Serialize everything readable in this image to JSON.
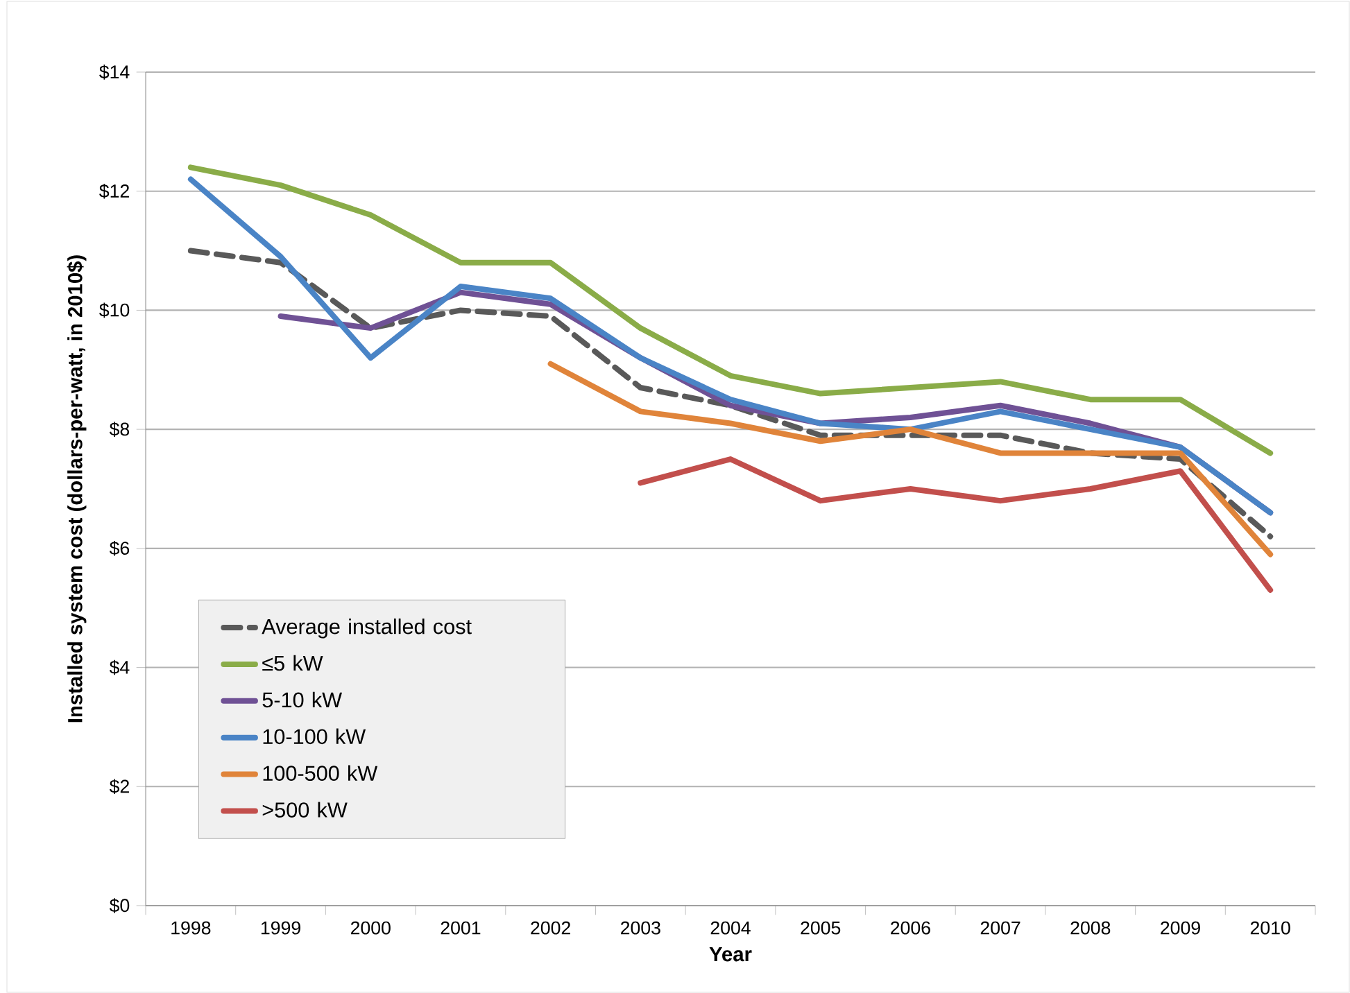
{
  "chart_data": {
    "type": "line",
    "xlabel": "Year",
    "ylabel": "Installed system cost (dollars-per-watt, in 2010$)",
    "categories": [
      "1998",
      "1999",
      "2000",
      "2001",
      "2002",
      "2003",
      "2004",
      "2005",
      "2006",
      "2007",
      "2008",
      "2009",
      "2010"
    ],
    "series": [
      {
        "name": "Average installed cost",
        "color": "#595959",
        "line_style": "dashed",
        "values": [
          11.0,
          10.8,
          9.7,
          10.0,
          9.9,
          8.7,
          8.4,
          7.9,
          7.9,
          7.9,
          7.6,
          7.5,
          6.2
        ]
      },
      {
        "name": "≤5 kW",
        "color": "#8aac48",
        "values": [
          12.4,
          12.1,
          11.6,
          10.8,
          10.8,
          9.7,
          8.9,
          8.6,
          8.7,
          8.8,
          8.5,
          8.5,
          7.6
        ]
      },
      {
        "name": "5-10 kW",
        "color": "#6f5195",
        "values": [
          null,
          9.9,
          9.7,
          10.3,
          10.1,
          9.2,
          8.4,
          8.1,
          8.2,
          8.4,
          8.1,
          7.7,
          6.6
        ]
      },
      {
        "name": "10-100 kW",
        "color": "#4a84c6",
        "values": [
          12.2,
          10.9,
          9.2,
          10.4,
          10.2,
          9.2,
          8.5,
          8.1,
          8.0,
          8.3,
          8.0,
          7.7,
          6.6
        ]
      },
      {
        "name": "100-500 kW",
        "color": "#e0843a",
        "values": [
          null,
          null,
          null,
          null,
          9.1,
          8.3,
          8.1,
          7.8,
          8.0,
          7.6,
          7.6,
          7.6,
          5.9
        ]
      },
      {
        "name": ">500 kW",
        "color": "#c24f4c",
        "values": [
          null,
          null,
          null,
          null,
          null,
          7.1,
          7.5,
          6.8,
          7.0,
          6.8,
          7.0,
          7.3,
          5.3
        ]
      }
    ],
    "ylim": [
      0,
      14
    ],
    "yticks": [
      {
        "value": 0,
        "label": "$0"
      },
      {
        "value": 2,
        "label": "$2"
      },
      {
        "value": 4,
        "label": "$4"
      },
      {
        "value": 6,
        "label": "$6"
      },
      {
        "value": 8,
        "label": "$8"
      },
      {
        "value": 10,
        "label": "$10"
      },
      {
        "value": 12,
        "label": "$12"
      },
      {
        "value": 14,
        "label": "$14"
      }
    ],
    "grid": "y",
    "legend": "bottom left",
    "marker": "none",
    "line_style": "solid"
  }
}
